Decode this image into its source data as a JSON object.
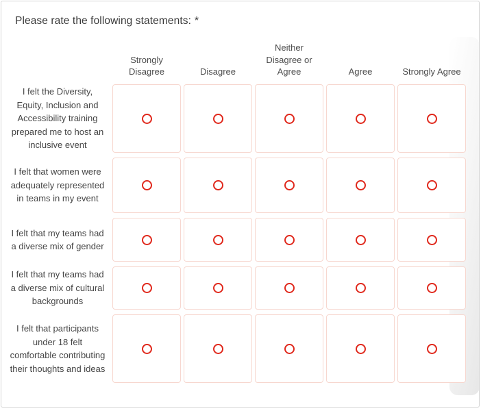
{
  "question": {
    "title": "Please rate the following statements:",
    "required_marker": "*"
  },
  "colors": {
    "radio_accent": "#e0281c",
    "cell_border": "#f7d7cf",
    "card_border": "#d5d5d5",
    "text": "#3a3a3a"
  },
  "matrix": {
    "columns": [
      "Strongly Disagree",
      "Disagree",
      "Neither Disagree or Agree",
      "Agree",
      "Strongly Agree"
    ],
    "rows": [
      {
        "label": "I felt the Diversity, Equity, Inclusion and Accessibility  training prepared me to host an inclusive event"
      },
      {
        "label": "I felt that women were adequately represented in teams in my event"
      },
      {
        "label": "I felt that my teams had a diverse mix of gender"
      },
      {
        "label": "I felt that my teams had a diverse mix of cultural backgrounds"
      },
      {
        "label": "I felt that participants under 18 felt comfortable contributing their thoughts and ideas"
      }
    ],
    "selected": "none"
  }
}
